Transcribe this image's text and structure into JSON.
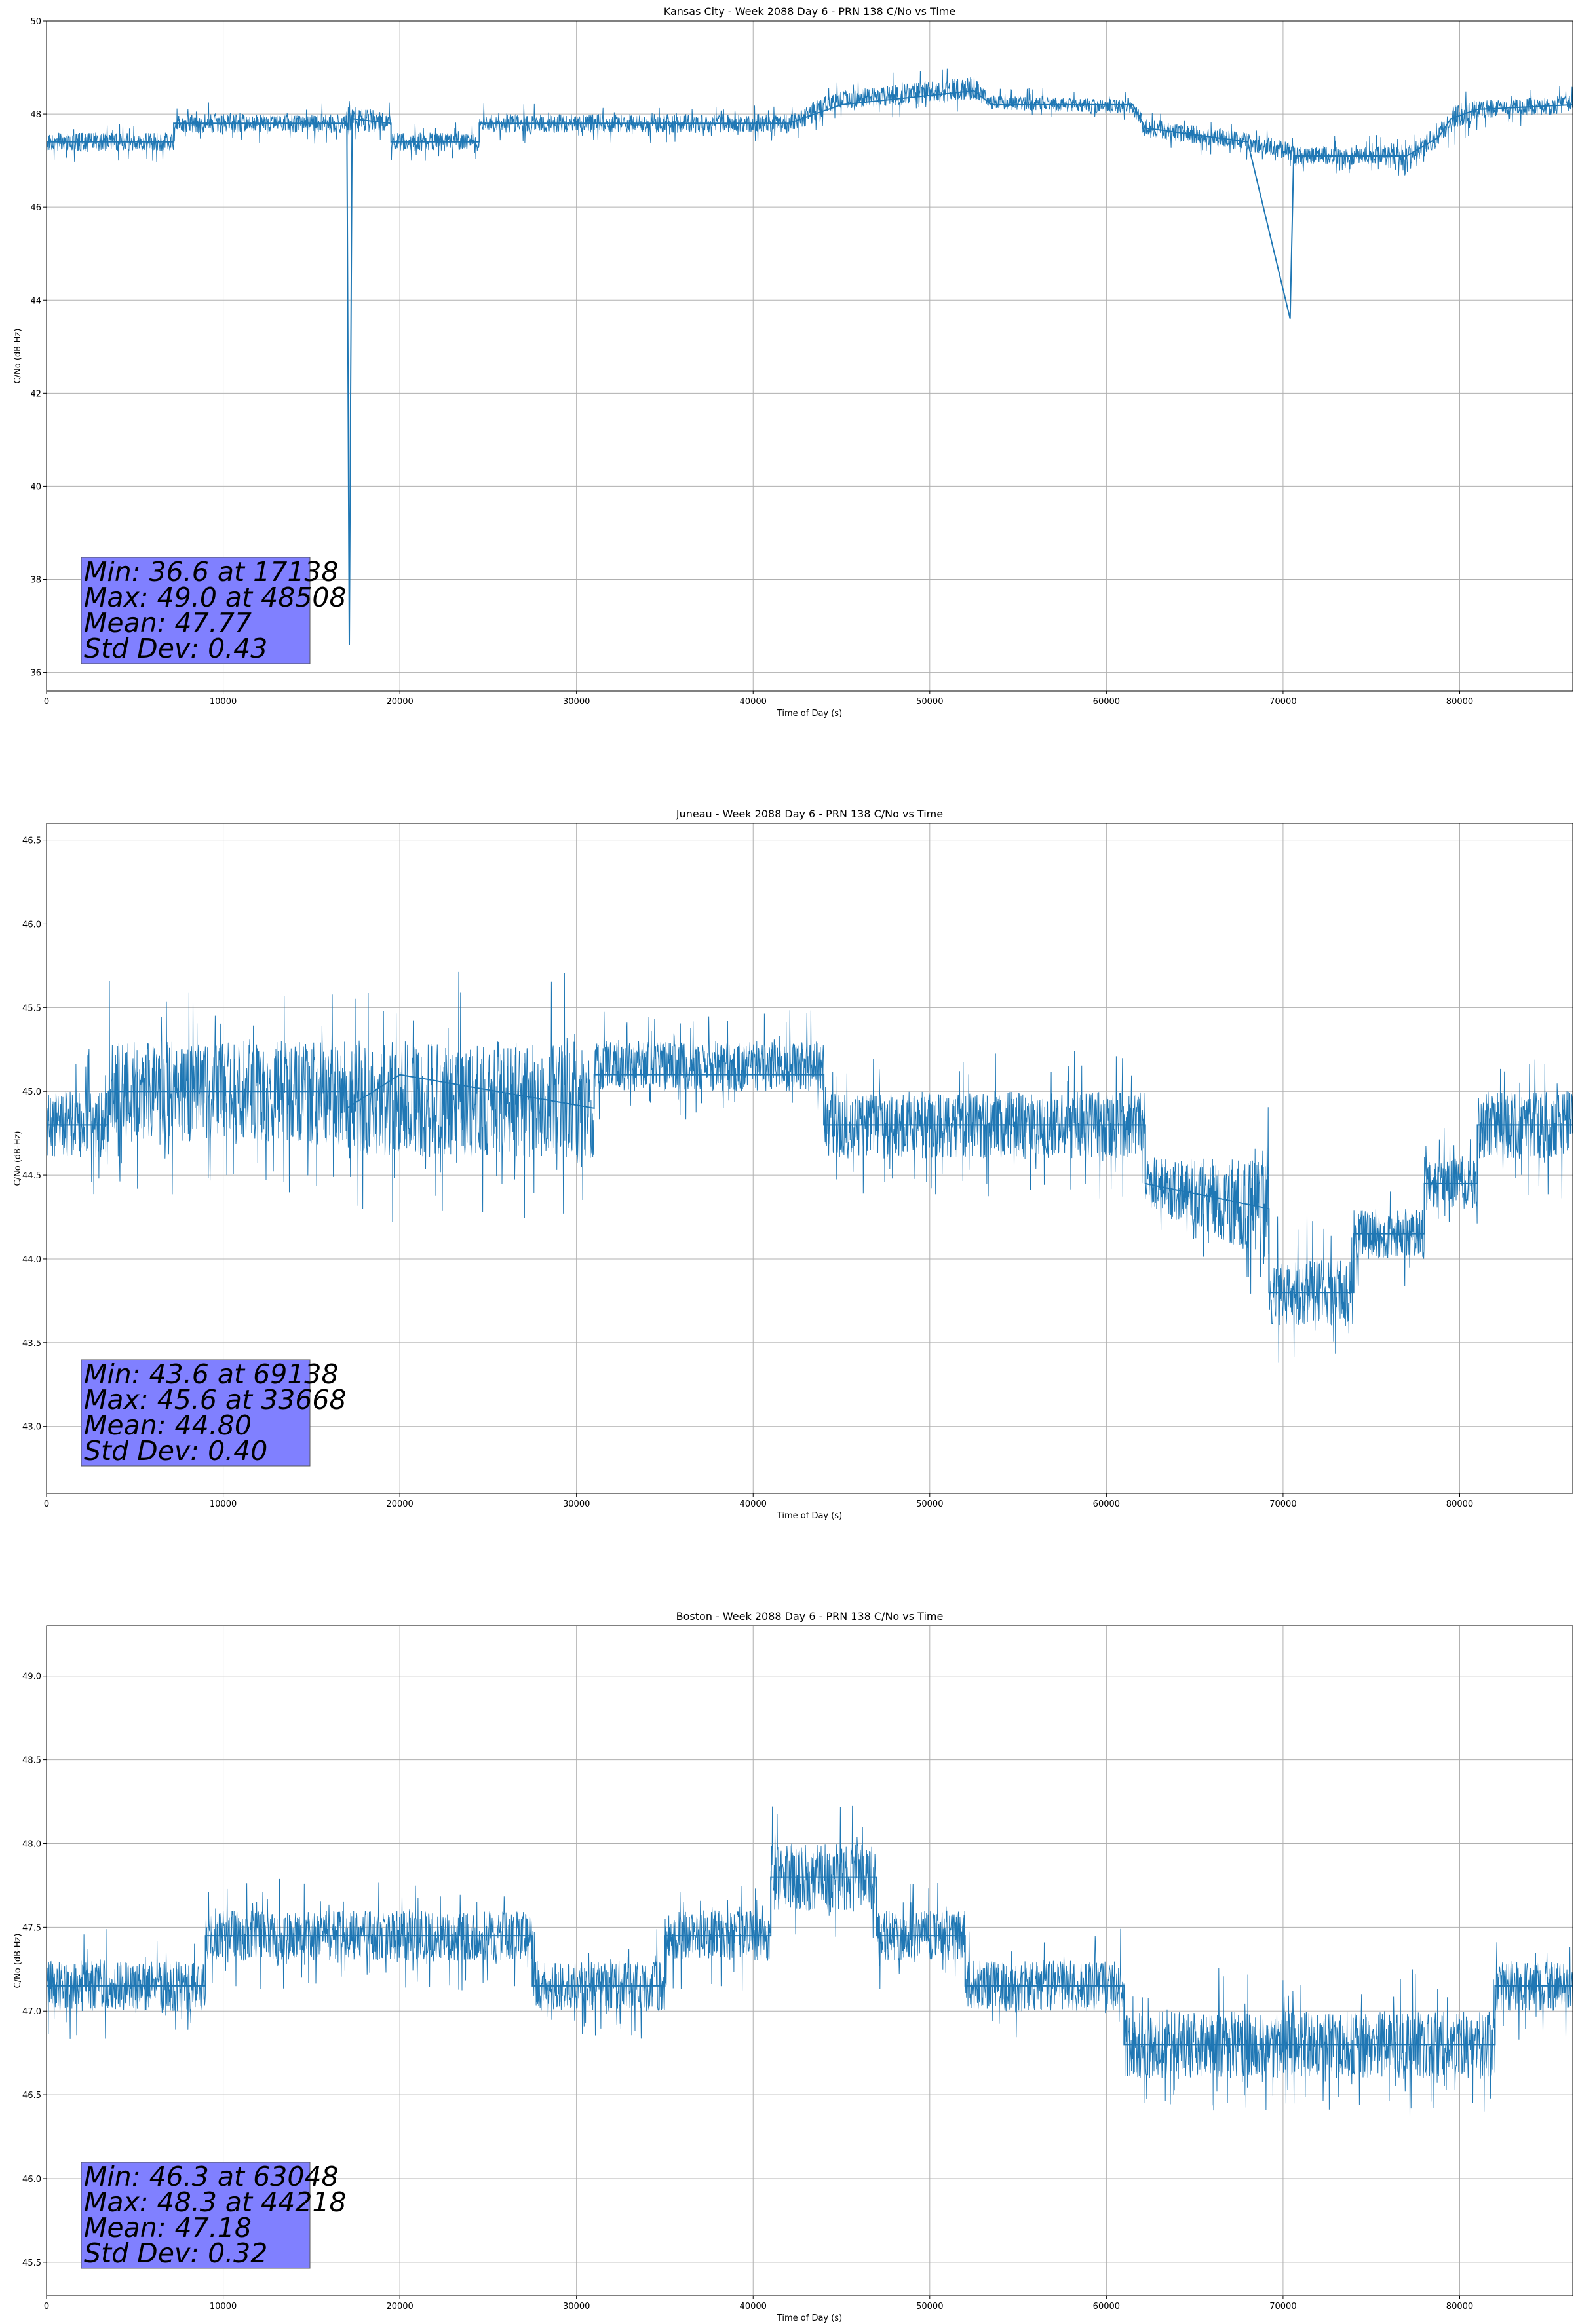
{
  "colors": {
    "line": "#1f77b4",
    "grid": "#b0b0b0",
    "stats_box": "#8080ff"
  },
  "chart_data": [
    {
      "type": "line",
      "title": "Kansas City - Week 2088 Day 6 - PRN 138 C/No vs Time",
      "xlabel": "Time of Day (s)",
      "ylabel": "C/No (dB-Hz)",
      "xlim": [
        0,
        86400
      ],
      "ylim": [
        35.6,
        50.0
      ],
      "xticks": [
        0,
        10000,
        20000,
        30000,
        40000,
        50000,
        60000,
        70000,
        80000
      ],
      "yticks": [
        36,
        38,
        40,
        42,
        44,
        46,
        48,
        50
      ],
      "grid": true,
      "series": [
        {
          "x": [
            0,
            7200,
            7201,
            17000,
            17138,
            17300,
            19500,
            19501,
            24500,
            24501,
            42000,
            43500,
            45000,
            52500,
            53500,
            61500,
            62200,
            68000,
            70400,
            70600,
            74000,
            77000,
            78800,
            79500,
            81000,
            86400
          ],
          "y": [
            47.4,
            47.4,
            47.8,
            47.8,
            36.6,
            47.9,
            47.8,
            47.4,
            47.4,
            47.8,
            47.8,
            48.0,
            48.2,
            48.5,
            48.2,
            48.2,
            47.7,
            47.4,
            43.6,
            47.1,
            47.1,
            47.1,
            47.5,
            47.9,
            48.1,
            48.2
          ],
          "band_low": [
            47.2,
            47.2,
            47.6,
            47.6,
            47.5,
            47.6,
            47.6,
            47.2,
            47.2,
            47.6,
            47.6,
            47.8,
            48.1,
            48.3,
            48.1,
            48.0,
            47.5,
            47.2,
            47.0,
            46.9,
            46.9,
            46.9,
            47.3,
            47.6,
            47.9,
            48.0
          ],
          "band_high": [
            47.6,
            47.6,
            48.0,
            48.0,
            48.3,
            48.2,
            48.0,
            47.6,
            47.6,
            48.0,
            48.0,
            48.3,
            48.5,
            48.8,
            48.4,
            48.3,
            47.9,
            47.6,
            47.4,
            47.3,
            47.3,
            47.3,
            47.8,
            48.2,
            48.3,
            48.4
          ]
        }
      ],
      "stats": [
        "Min: 36.6 at 17138",
        "Max: 49.0 at 48508",
        "Mean: 47.77",
        "Std Dev: 0.43"
      ]
    },
    {
      "type": "line",
      "title": "Juneau - Week 2088 Day 6 - PRN 138 C/No vs Time",
      "xlabel": "Time of Day (s)",
      "ylabel": "C/No (dB-Hz)",
      "xlim": [
        0,
        86400
      ],
      "ylim": [
        42.6,
        46.6
      ],
      "xticks": [
        0,
        10000,
        20000,
        30000,
        40000,
        50000,
        60000,
        70000,
        80000
      ],
      "yticks": [
        43.0,
        43.5,
        44.0,
        44.5,
        45.0,
        45.5,
        46.0,
        46.5
      ],
      "grid": true,
      "series": [
        {
          "x": [
            0,
            3500,
            3501,
            17000,
            17001,
            20000,
            31000,
            31001,
            44000,
            44001,
            62200,
            62201,
            69200,
            69201,
            74000,
            74001,
            78000,
            78001,
            81000,
            81001,
            86400
          ],
          "y": [
            44.8,
            44.8,
            45.0,
            45.0,
            44.9,
            45.1,
            44.9,
            45.1,
            45.1,
            44.8,
            44.8,
            44.45,
            44.3,
            43.8,
            43.8,
            44.15,
            44.15,
            44.45,
            44.45,
            44.8,
            44.8
          ],
          "band_low": [
            44.6,
            44.6,
            44.7,
            44.7,
            44.6,
            44.6,
            44.6,
            45.0,
            45.0,
            44.6,
            44.6,
            44.3,
            44.0,
            43.6,
            43.6,
            44.0,
            44.0,
            44.3,
            44.3,
            44.6,
            44.6
          ],
          "band_high": [
            45.0,
            45.0,
            45.3,
            45.3,
            45.3,
            45.3,
            45.3,
            45.3,
            45.3,
            45.0,
            45.0,
            44.6,
            44.6,
            44.0,
            44.0,
            44.3,
            44.3,
            44.6,
            44.6,
            45.0,
            45.0
          ]
        }
      ],
      "stats": [
        "Min: 43.6 at 69138",
        "Max: 45.6 at 33668",
        "Mean: 44.80",
        "Std Dev: 0.40"
      ]
    },
    {
      "type": "line",
      "title": "Boston - Week 2088 Day 6 - PRN 138 C/No vs Time",
      "xlabel": "Time of Day (s)",
      "ylabel": "C/No (dB-Hz)",
      "xlim": [
        0,
        86400
      ],
      "ylim": [
        45.3,
        49.3
      ],
      "xticks": [
        0,
        10000,
        20000,
        30000,
        40000,
        50000,
        60000,
        70000,
        80000
      ],
      "yticks": [
        45.5,
        46.0,
        46.5,
        47.0,
        47.5,
        48.0,
        48.5,
        49.0
      ],
      "grid": true,
      "series": [
        {
          "x": [
            0,
            9000,
            9001,
            27500,
            27501,
            35000,
            35001,
            41000,
            41001,
            47000,
            47001,
            52000,
            52001,
            61000,
            61001,
            82000,
            82001,
            86400
          ],
          "y": [
            47.15,
            47.15,
            47.45,
            47.45,
            47.15,
            47.15,
            47.45,
            47.45,
            47.8,
            47.8,
            47.45,
            47.45,
            47.15,
            47.15,
            46.8,
            46.8,
            47.15,
            47.15
          ],
          "band_low": [
            47.0,
            47.0,
            47.3,
            47.3,
            47.0,
            47.0,
            47.3,
            47.3,
            47.6,
            47.6,
            47.3,
            47.3,
            47.0,
            47.0,
            46.6,
            46.6,
            47.0,
            47.0
          ],
          "band_high": [
            47.3,
            47.3,
            47.6,
            47.6,
            47.3,
            47.3,
            47.6,
            47.6,
            48.0,
            48.0,
            47.6,
            47.6,
            47.3,
            47.3,
            47.0,
            47.0,
            47.3,
            47.3
          ]
        }
      ],
      "stats": [
        "Min: 46.3 at 63048",
        "Max: 48.3 at 44218",
        "Mean: 47.18",
        "Std Dev: 0.32"
      ]
    }
  ]
}
